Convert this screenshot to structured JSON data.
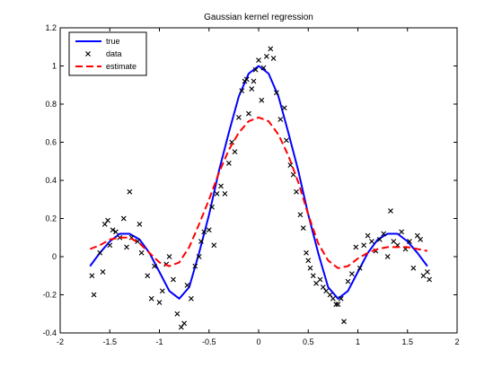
{
  "chart_data": {
    "type": "line",
    "title": "Gaussian kernel regression",
    "xlabel": "",
    "ylabel": "",
    "xlim": [
      -2,
      2
    ],
    "ylim": [
      -0.4,
      1.2
    ],
    "xticks": [
      -2,
      -1.5,
      -1,
      -0.5,
      0,
      0.5,
      1,
      1.5,
      2
    ],
    "yticks": [
      -0.4,
      -0.2,
      0,
      0.2,
      0.4,
      0.6,
      0.8,
      1,
      1.2
    ],
    "xtick_labels": [
      "-2",
      "-1.5",
      "-1",
      "-0.5",
      "0",
      "0.5",
      "1",
      "1.5",
      "2"
    ],
    "ytick_labels": [
      "-0.4",
      "-0.2",
      "0",
      "0.2",
      "0.4",
      "0.6",
      "0.8",
      "1",
      "1.2"
    ],
    "grid": false,
    "legend_position": "top-left",
    "series": [
      {
        "name": "true",
        "style": "solid-line",
        "color": "#0000ff",
        "x": [
          -1.7,
          -1.6,
          -1.5,
          -1.4,
          -1.3,
          -1.2,
          -1.1,
          -1.0,
          -0.9,
          -0.8,
          -0.7,
          -0.6,
          -0.5,
          -0.4,
          -0.3,
          -0.2,
          -0.1,
          0.0,
          0.1,
          0.2,
          0.3,
          0.4,
          0.5,
          0.6,
          0.7,
          0.8,
          0.9,
          1.0,
          1.1,
          1.2,
          1.3,
          1.4,
          1.5,
          1.6,
          1.7
        ],
        "y": [
          -0.05,
          0.02,
          0.08,
          0.12,
          0.12,
          0.09,
          0.02,
          -0.08,
          -0.18,
          -0.22,
          -0.16,
          0.02,
          0.22,
          0.45,
          0.65,
          0.84,
          0.96,
          1.0,
          0.96,
          0.84,
          0.65,
          0.45,
          0.22,
          0.02,
          -0.16,
          -0.22,
          -0.18,
          -0.08,
          0.02,
          0.09,
          0.12,
          0.12,
          0.08,
          0.02,
          -0.05
        ]
      },
      {
        "name": "data",
        "style": "x-marker",
        "color": "#000000",
        "x": [
          -1.68,
          -1.66,
          -1.6,
          -1.57,
          -1.55,
          -1.52,
          -1.5,
          -1.47,
          -1.44,
          -1.4,
          -1.36,
          -1.33,
          -1.3,
          -1.28,
          -1.22,
          -1.2,
          -1.18,
          -1.12,
          -1.08,
          -1.05,
          -1.0,
          -0.97,
          -0.93,
          -0.9,
          -0.86,
          -0.82,
          -0.78,
          -0.75,
          -0.72,
          -0.68,
          -0.64,
          -0.6,
          -0.58,
          -0.55,
          -0.5,
          -0.47,
          -0.45,
          -0.42,
          -0.38,
          -0.34,
          -0.3,
          -0.27,
          -0.24,
          -0.2,
          -0.17,
          -0.14,
          -0.12,
          -0.1,
          -0.07,
          -0.05,
          -0.03,
          0.0,
          0.03,
          0.05,
          0.08,
          0.12,
          0.15,
          0.18,
          0.22,
          0.26,
          0.28,
          0.32,
          0.35,
          0.38,
          0.42,
          0.45,
          0.48,
          0.5,
          0.52,
          0.55,
          0.58,
          0.62,
          0.65,
          0.68,
          0.72,
          0.75,
          0.78,
          0.8,
          0.83,
          0.86,
          0.9,
          0.94,
          0.98,
          1.02,
          1.06,
          1.1,
          1.14,
          1.18,
          1.22,
          1.26,
          1.3,
          1.33,
          1.36,
          1.4,
          1.44,
          1.48,
          1.52,
          1.56,
          1.6,
          1.63,
          1.66,
          1.7,
          1.72
        ],
        "y": [
          -0.1,
          -0.2,
          0.02,
          -0.08,
          0.17,
          0.19,
          0.06,
          0.14,
          0.13,
          0.1,
          0.2,
          0.05,
          0.34,
          0.1,
          0.08,
          0.17,
          0.02,
          -0.1,
          -0.22,
          -0.05,
          -0.24,
          -0.18,
          -0.04,
          0.0,
          -0.12,
          -0.3,
          -0.37,
          -0.35,
          -0.15,
          -0.22,
          -0.05,
          0.0,
          0.08,
          0.13,
          0.14,
          0.26,
          0.06,
          0.33,
          0.37,
          0.33,
          0.49,
          0.6,
          0.55,
          0.73,
          0.87,
          0.92,
          0.93,
          0.75,
          0.88,
          0.92,
          0.98,
          1.03,
          0.82,
          0.99,
          1.05,
          1.09,
          1.04,
          0.86,
          0.72,
          0.78,
          0.61,
          0.48,
          0.43,
          0.34,
          0.22,
          0.15,
          0.02,
          -0.02,
          -0.06,
          -0.1,
          -0.14,
          -0.12,
          -0.16,
          -0.18,
          -0.2,
          -0.22,
          -0.25,
          -0.25,
          -0.22,
          -0.34,
          -0.13,
          -0.09,
          0.05,
          -0.06,
          0.06,
          0.11,
          0.08,
          0.03,
          0.09,
          0.12,
          0.0,
          0.24,
          0.08,
          0.06,
          0.13,
          0.04,
          0.08,
          -0.06,
          0.11,
          0.09,
          -0.1,
          -0.08,
          -0.12
        ]
      },
      {
        "name": "estimate",
        "style": "dashed-line",
        "color": "#ff0000",
        "x": [
          -1.7,
          -1.6,
          -1.5,
          -1.4,
          -1.3,
          -1.2,
          -1.1,
          -1.0,
          -0.9,
          -0.8,
          -0.7,
          -0.6,
          -0.5,
          -0.4,
          -0.3,
          -0.2,
          -0.1,
          0.0,
          0.1,
          0.2,
          0.3,
          0.4,
          0.5,
          0.6,
          0.7,
          0.8,
          0.9,
          1.0,
          1.1,
          1.2,
          1.3,
          1.4,
          1.5,
          1.6,
          1.7
        ],
        "y": [
          0.04,
          0.06,
          0.09,
          0.1,
          0.1,
          0.07,
          0.02,
          -0.03,
          -0.05,
          -0.03,
          0.05,
          0.17,
          0.3,
          0.44,
          0.56,
          0.65,
          0.71,
          0.73,
          0.71,
          0.64,
          0.53,
          0.39,
          0.22,
          0.07,
          -0.02,
          -0.06,
          -0.05,
          -0.01,
          0.02,
          0.04,
          0.05,
          0.05,
          0.05,
          0.04,
          0.03
        ]
      }
    ]
  }
}
